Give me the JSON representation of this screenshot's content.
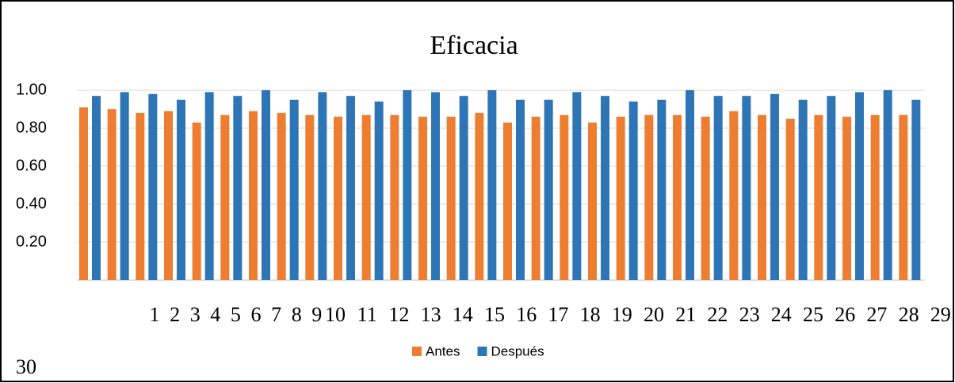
{
  "chart_data": {
    "type": "bar",
    "title": "Eficacia",
    "categories": [
      "1",
      "2",
      "3",
      "4",
      "5",
      "6",
      "7",
      "8",
      "9",
      "10",
      "11",
      "12",
      "13",
      "14",
      "15",
      "16",
      "17",
      "18",
      "19",
      "20",
      "21",
      "22",
      "23",
      "24",
      "25",
      "26",
      "27",
      "28",
      "29",
      "30"
    ],
    "series": [
      {
        "name": "Antes",
        "color": "#ed7d31",
        "values": [
          0.91,
          0.9,
          0.88,
          0.89,
          0.83,
          0.87,
          0.89,
          0.88,
          0.87,
          0.86,
          0.87,
          0.87,
          0.86,
          0.86,
          0.88,
          0.83,
          0.86,
          0.87,
          0.83,
          0.86,
          0.87,
          0.87,
          0.86,
          0.89,
          0.87,
          0.85,
          0.87,
          0.86,
          0.87,
          0.87
        ]
      },
      {
        "name": "Después",
        "color": "#2e75b6",
        "values": [
          0.97,
          0.99,
          0.98,
          0.95,
          0.99,
          0.97,
          1.0,
          0.95,
          0.99,
          0.97,
          0.94,
          1.0,
          0.99,
          0.97,
          1.0,
          0.95,
          0.95,
          0.99,
          0.97,
          0.94,
          0.95,
          1.0,
          0.97,
          0.97,
          0.98,
          0.95,
          0.97,
          0.99,
          1.0,
          0.95
        ]
      }
    ],
    "ylim": [
      0,
      1
    ],
    "yticks": [
      {
        "value": 0.2,
        "label": "0.20"
      },
      {
        "value": 0.4,
        "label": "0.40"
      },
      {
        "value": 0.6,
        "label": "0.60"
      },
      {
        "value": 0.8,
        "label": "0.80"
      },
      {
        "value": 1.0,
        "label": "1.00"
      }
    ],
    "grid": true,
    "legend": "bottom"
  }
}
